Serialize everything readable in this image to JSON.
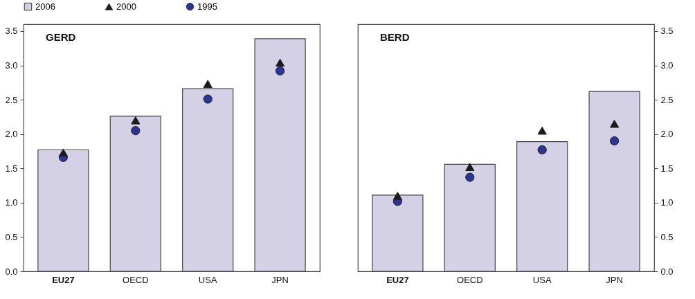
{
  "chart_data": [
    {
      "type": "bar",
      "title": "GERD",
      "categories": [
        "EU27",
        "OECD",
        "USA",
        "JPN"
      ],
      "series": [
        {
          "name": "2006",
          "color": "#d4d1e6",
          "values": [
            1.77,
            2.26,
            2.66,
            3.39
          ]
        },
        {
          "name": "2000",
          "type": "scatter",
          "marker": "triangle",
          "color": "#1a1a1a",
          "values": [
            1.73,
            2.2,
            2.73,
            3.04
          ]
        },
        {
          "name": "1995",
          "type": "scatter",
          "marker": "circle",
          "color": "#2b3594",
          "values": [
            1.66,
            2.05,
            2.51,
            2.92
          ]
        }
      ],
      "ylim": [
        0,
        3.6
      ],
      "yticks": [
        {
          "value": 0,
          "label": "0.0"
        },
        0.5,
        {
          "value": 1,
          "label": "1.0"
        },
        1.5,
        {
          "value": 2,
          "label": "2.0"
        },
        2.5,
        {
          "value": 3,
          "label": "3.0"
        },
        3.5
      ],
      "grid": false,
      "legend": "top"
    },
    {
      "type": "bar",
      "title": "BERD",
      "categories": [
        "EU27",
        "OECD",
        "USA",
        "JPN"
      ],
      "series": [
        {
          "name": "2006",
          "color": "#d4d1e6",
          "axis": "y2",
          "values": [
            1.11,
            1.56,
            1.89,
            2.62
          ]
        },
        {
          "name": "2000",
          "type": "scatter",
          "marker": "triangle",
          "color": "#1a1a1a",
          "axis": "y2",
          "values": [
            1.1,
            1.52,
            2.05,
            2.15
          ]
        },
        {
          "name": "1995",
          "type": "scatter",
          "marker": "circle",
          "color": "#2b3594",
          "axis": "y2",
          "values": [
            1.02,
            1.37,
            1.77,
            1.9
          ]
        }
      ],
      "y2lim": [
        0,
        3.6
      ],
      "y2ticks": [
        {
          "value": 0,
          "label": "0.0"
        },
        0.5,
        {
          "value": 1,
          "label": "1.0"
        },
        1.5,
        {
          "value": 2,
          "label": "2.0"
        },
        2.5,
        {
          "value": 3,
          "label": "3.0"
        },
        3.5
      ],
      "grid": false
    }
  ]
}
